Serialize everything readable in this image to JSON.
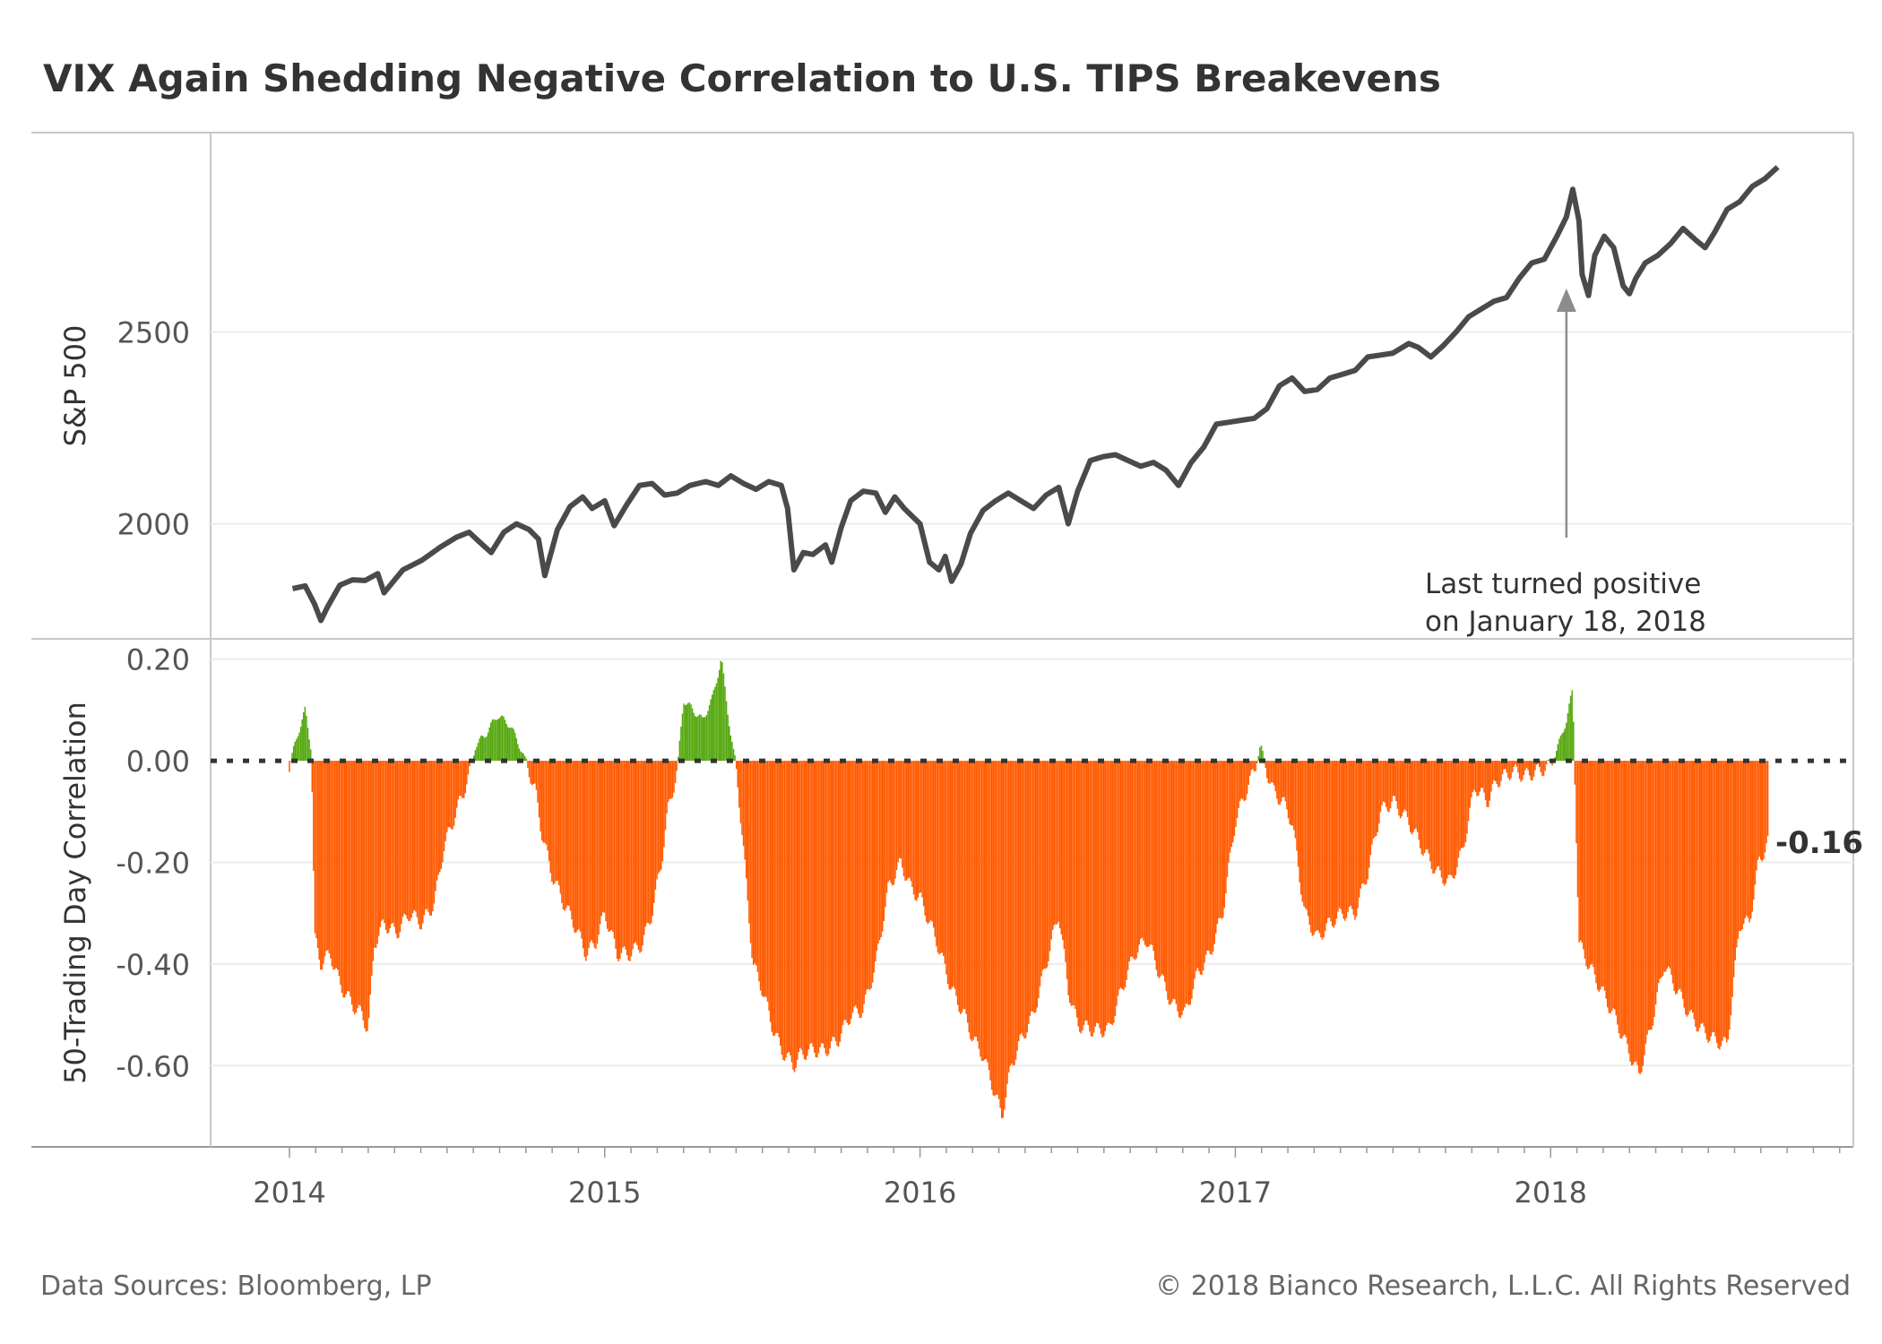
{
  "title": "VIX Again Shedding Negative Correlation to U.S. TIPS Breakevens",
  "footer": {
    "source": "Data Sources: Bloomberg, LP",
    "copyright": "© 2018 Bianco Research, L.L.C. All Rights Reserved"
  },
  "colors": {
    "line": "#4a4a4a",
    "positive": "#55a80f",
    "negative": "#ff5a00",
    "arrow": "#8c8c8c",
    "grid": "#ececec",
    "frame": "#c8c8c8"
  },
  "chart_data": [
    {
      "type": "line",
      "ylabel": "S&P 500",
      "yticks": [
        2000,
        2500
      ],
      "ylim": [
        1700,
        3020
      ],
      "xlim": [
        2013.75,
        2018.96
      ],
      "grid": true,
      "series": [
        {
          "values": [
            [
              2014.01,
              1831
            ],
            [
              2014.05,
              1838
            ],
            [
              2014.08,
              1790
            ],
            [
              2014.1,
              1748
            ],
            [
              2014.12,
              1782
            ],
            [
              2014.16,
              1840
            ],
            [
              2014.2,
              1854
            ],
            [
              2014.24,
              1852
            ],
            [
              2014.28,
              1870
            ],
            [
              2014.3,
              1820
            ],
            [
              2014.36,
              1880
            ],
            [
              2014.42,
              1905
            ],
            [
              2014.48,
              1940
            ],
            [
              2014.53,
              1965
            ],
            [
              2014.57,
              1978
            ],
            [
              2014.6,
              1955
            ],
            [
              2014.64,
              1925
            ],
            [
              2014.68,
              1978
            ],
            [
              2014.72,
              2000
            ],
            [
              2014.76,
              1985
            ],
            [
              2014.79,
              1960
            ],
            [
              2014.81,
              1865
            ],
            [
              2014.85,
              1985
            ],
            [
              2014.89,
              2045
            ],
            [
              2014.93,
              2070
            ],
            [
              2014.96,
              2040
            ],
            [
              2015.0,
              2060
            ],
            [
              2015.03,
              1995
            ],
            [
              2015.07,
              2050
            ],
            [
              2015.11,
              2100
            ],
            [
              2015.15,
              2105
            ],
            [
              2015.19,
              2075
            ],
            [
              2015.23,
              2080
            ],
            [
              2015.27,
              2100
            ],
            [
              2015.32,
              2110
            ],
            [
              2015.36,
              2100
            ],
            [
              2015.4,
              2125
            ],
            [
              2015.44,
              2105
            ],
            [
              2015.48,
              2090
            ],
            [
              2015.52,
              2110
            ],
            [
              2015.56,
              2100
            ],
            [
              2015.58,
              2040
            ],
            [
              2015.6,
              1880
            ],
            [
              2015.63,
              1925
            ],
            [
              2015.66,
              1920
            ],
            [
              2015.7,
              1945
            ],
            [
              2015.72,
              1900
            ],
            [
              2015.75,
              1990
            ],
            [
              2015.78,
              2060
            ],
            [
              2015.82,
              2085
            ],
            [
              2015.86,
              2080
            ],
            [
              2015.89,
              2030
            ],
            [
              2015.92,
              2070
            ],
            [
              2015.95,
              2040
            ],
            [
              2016.0,
              2000
            ],
            [
              2016.03,
              1900
            ],
            [
              2016.06,
              1880
            ],
            [
              2016.08,
              1915
            ],
            [
              2016.1,
              1850
            ],
            [
              2016.13,
              1895
            ],
            [
              2016.16,
              1975
            ],
            [
              2016.2,
              2035
            ],
            [
              2016.24,
              2060
            ],
            [
              2016.28,
              2080
            ],
            [
              2016.32,
              2060
            ],
            [
              2016.36,
              2040
            ],
            [
              2016.4,
              2075
            ],
            [
              2016.44,
              2095
            ],
            [
              2016.47,
              2000
            ],
            [
              2016.5,
              2085
            ],
            [
              2016.54,
              2165
            ],
            [
              2016.58,
              2175
            ],
            [
              2016.62,
              2180
            ],
            [
              2016.66,
              2165
            ],
            [
              2016.7,
              2150
            ],
            [
              2016.74,
              2160
            ],
            [
              2016.78,
              2140
            ],
            [
              2016.82,
              2100
            ],
            [
              2016.86,
              2160
            ],
            [
              2016.9,
              2200
            ],
            [
              2016.94,
              2260
            ],
            [
              2016.98,
              2265
            ],
            [
              2017.02,
              2270
            ],
            [
              2017.06,
              2275
            ],
            [
              2017.1,
              2300
            ],
            [
              2017.14,
              2360
            ],
            [
              2017.18,
              2380
            ],
            [
              2017.22,
              2345
            ],
            [
              2017.26,
              2350
            ],
            [
              2017.3,
              2380
            ],
            [
              2017.34,
              2390
            ],
            [
              2017.38,
              2400
            ],
            [
              2017.42,
              2435
            ],
            [
              2017.46,
              2440
            ],
            [
              2017.5,
              2445
            ],
            [
              2017.55,
              2470
            ],
            [
              2017.58,
              2460
            ],
            [
              2017.62,
              2435
            ],
            [
              2017.66,
              2465
            ],
            [
              2017.7,
              2500
            ],
            [
              2017.74,
              2540
            ],
            [
              2017.78,
              2560
            ],
            [
              2017.82,
              2580
            ],
            [
              2017.86,
              2590
            ],
            [
              2017.9,
              2640
            ],
            [
              2017.94,
              2680
            ],
            [
              2017.98,
              2690
            ],
            [
              2018.02,
              2750
            ],
            [
              2018.05,
              2800
            ],
            [
              2018.07,
              2872
            ],
            [
              2018.09,
              2790
            ],
            [
              2018.1,
              2650
            ],
            [
              2018.12,
              2595
            ],
            [
              2018.14,
              2700
            ],
            [
              2018.17,
              2750
            ],
            [
              2018.2,
              2720
            ],
            [
              2018.23,
              2620
            ],
            [
              2018.25,
              2600
            ],
            [
              2018.27,
              2640
            ],
            [
              2018.3,
              2680
            ],
            [
              2018.34,
              2700
            ],
            [
              2018.38,
              2730
            ],
            [
              2018.42,
              2770
            ],
            [
              2018.46,
              2740
            ],
            [
              2018.49,
              2720
            ],
            [
              2018.52,
              2760
            ],
            [
              2018.56,
              2820
            ],
            [
              2018.6,
              2840
            ],
            [
              2018.64,
              2880
            ],
            [
              2018.68,
              2900
            ],
            [
              2018.72,
              2930
            ]
          ]
        }
      ],
      "annotation": {
        "text_line1": "Last turned positive",
        "text_line2": "on January 18, 2018",
        "x": 2018.05
      }
    },
    {
      "type": "bar",
      "ylabel": "50-Trading Day Correlation",
      "yticks": [
        0.2,
        0.0,
        -0.2,
        -0.4,
        -0.6
      ],
      "ytick_labels": [
        "0.20",
        "0.00",
        "-0.20",
        "-0.40",
        "-0.60"
      ],
      "ylim": [
        -0.76,
        0.24
      ],
      "xlim": [
        2013.75,
        2018.96
      ],
      "xticks": [
        "2014",
        "2015",
        "2016",
        "2017",
        "2018"
      ],
      "xtick_values": [
        2014,
        2015,
        2016,
        2017,
        2018
      ],
      "zero_line": "dotted",
      "last_value_label": "-0.16",
      "x_start": 2014.0,
      "x_step": 0.0045,
      "anchors": [
        [
          2014.0,
          -0.01
        ],
        [
          2014.03,
          0.06
        ],
        [
          2014.05,
          0.1
        ],
        [
          2014.07,
          0.02
        ],
        [
          2014.08,
          -0.35
        ],
        [
          2014.1,
          -0.4
        ],
        [
          2014.13,
          -0.38
        ],
        [
          2014.16,
          -0.44
        ],
        [
          2014.2,
          -0.48
        ],
        [
          2014.23,
          -0.5
        ],
        [
          2014.25,
          -0.53
        ],
        [
          2014.27,
          -0.36
        ],
        [
          2014.3,
          -0.32
        ],
        [
          2014.34,
          -0.34
        ],
        [
          2014.38,
          -0.3
        ],
        [
          2014.42,
          -0.32
        ],
        [
          2014.46,
          -0.28
        ],
        [
          2014.49,
          -0.17
        ],
        [
          2014.53,
          -0.1
        ],
        [
          2014.57,
          -0.03
        ],
        [
          2014.59,
          0.03
        ],
        [
          2014.62,
          0.05
        ],
        [
          2014.66,
          0.09
        ],
        [
          2014.7,
          0.07
        ],
        [
          2014.73,
          0.03
        ],
        [
          2014.76,
          -0.02
        ],
        [
          2014.78,
          -0.06
        ],
        [
          2014.8,
          -0.14
        ],
        [
          2014.83,
          -0.22
        ],
        [
          2014.87,
          -0.28
        ],
        [
          2014.91,
          -0.33
        ],
        [
          2014.94,
          -0.38
        ],
        [
          2014.97,
          -0.36
        ],
        [
          2015.0,
          -0.3
        ],
        [
          2015.04,
          -0.38
        ],
        [
          2015.08,
          -0.38
        ],
        [
          2015.12,
          -0.36
        ],
        [
          2015.15,
          -0.3
        ],
        [
          2015.18,
          -0.2
        ],
        [
          2015.2,
          -0.1
        ],
        [
          2015.23,
          -0.02
        ],
        [
          2015.25,
          0.12
        ],
        [
          2015.28,
          0.1
        ],
        [
          2015.31,
          0.08
        ],
        [
          2015.34,
          0.12
        ],
        [
          2015.37,
          0.2
        ],
        [
          2015.4,
          0.05
        ],
        [
          2015.42,
          -0.03
        ],
        [
          2015.45,
          -0.25
        ],
        [
          2015.47,
          -0.4
        ],
        [
          2015.5,
          -0.45
        ],
        [
          2015.53,
          -0.52
        ],
        [
          2015.56,
          -0.57
        ],
        [
          2015.6,
          -0.6
        ],
        [
          2015.62,
          -0.58
        ],
        [
          2015.65,
          -0.57
        ],
        [
          2015.7,
          -0.57
        ],
        [
          2015.74,
          -0.55
        ],
        [
          2015.78,
          -0.5
        ],
        [
          2015.82,
          -0.49
        ],
        [
          2015.86,
          -0.4
        ],
        [
          2015.9,
          -0.25
        ],
        [
          2015.94,
          -0.2
        ],
        [
          2015.97,
          -0.25
        ],
        [
          2016.0,
          -0.27
        ],
        [
          2016.05,
          -0.35
        ],
        [
          2016.1,
          -0.45
        ],
        [
          2016.14,
          -0.5
        ],
        [
          2016.17,
          -0.55
        ],
        [
          2016.2,
          -0.58
        ],
        [
          2016.23,
          -0.64
        ],
        [
          2016.26,
          -0.7
        ],
        [
          2016.29,
          -0.6
        ],
        [
          2016.32,
          -0.55
        ],
        [
          2016.36,
          -0.5
        ],
        [
          2016.4,
          -0.4
        ],
        [
          2016.44,
          -0.3
        ],
        [
          2016.47,
          -0.45
        ],
        [
          2016.5,
          -0.52
        ],
        [
          2016.55,
          -0.53
        ],
        [
          2016.6,
          -0.53
        ],
        [
          2016.64,
          -0.45
        ],
        [
          2016.68,
          -0.38
        ],
        [
          2016.72,
          -0.35
        ],
        [
          2016.76,
          -0.42
        ],
        [
          2016.8,
          -0.48
        ],
        [
          2016.84,
          -0.5
        ],
        [
          2016.88,
          -0.42
        ],
        [
          2016.92,
          -0.38
        ],
        [
          2016.96,
          -0.3
        ],
        [
          2017.0,
          -0.12
        ],
        [
          2017.04,
          -0.05
        ],
        [
          2017.06,
          -0.02
        ],
        [
          2017.08,
          0.03
        ],
        [
          2017.1,
          -0.02
        ],
        [
          2017.12,
          -0.06
        ],
        [
          2017.15,
          -0.08
        ],
        [
          2017.18,
          -0.12
        ],
        [
          2017.22,
          -0.3
        ],
        [
          2017.26,
          -0.35
        ],
        [
          2017.3,
          -0.32
        ],
        [
          2017.34,
          -0.3
        ],
        [
          2017.38,
          -0.3
        ],
        [
          2017.42,
          -0.22
        ],
        [
          2017.46,
          -0.1
        ],
        [
          2017.5,
          -0.08
        ],
        [
          2017.55,
          -0.12
        ],
        [
          2017.6,
          -0.18
        ],
        [
          2017.64,
          -0.22
        ],
        [
          2017.68,
          -0.24
        ],
        [
          2017.72,
          -0.18
        ],
        [
          2017.76,
          -0.05
        ],
        [
          2017.8,
          -0.08
        ],
        [
          2017.83,
          -0.04
        ],
        [
          2017.88,
          -0.02
        ],
        [
          2017.92,
          -0.03
        ],
        [
          2017.96,
          -0.02
        ],
        [
          2018.0,
          -0.01
        ],
        [
          2018.03,
          0.04
        ],
        [
          2018.05,
          0.08
        ],
        [
          2018.07,
          0.14
        ],
        [
          2018.09,
          -0.36
        ],
        [
          2018.12,
          -0.4
        ],
        [
          2018.16,
          -0.45
        ],
        [
          2018.2,
          -0.5
        ],
        [
          2018.24,
          -0.56
        ],
        [
          2018.28,
          -0.62
        ],
        [
          2018.32,
          -0.52
        ],
        [
          2018.36,
          -0.4
        ],
        [
          2018.4,
          -0.45
        ],
        [
          2018.44,
          -0.5
        ],
        [
          2018.48,
          -0.53
        ],
        [
          2018.52,
          -0.55
        ],
        [
          2018.56,
          -0.56
        ],
        [
          2018.6,
          -0.32
        ],
        [
          2018.63,
          -0.32
        ],
        [
          2018.66,
          -0.2
        ],
        [
          2018.69,
          -0.16
        ]
      ]
    }
  ]
}
